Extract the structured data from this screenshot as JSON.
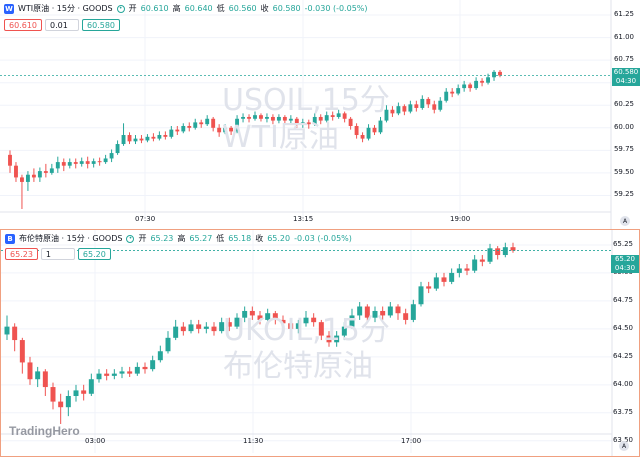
{
  "top": {
    "title": "WTI原油 · 15分 · GOODS",
    "open_label": "开",
    "open": "60.610",
    "high_label": "高",
    "high": "60.640",
    "low_label": "低",
    "low": "60.560",
    "close_label": "收",
    "close": "60.580",
    "change": "-0.030 (-0.05%)",
    "box_bid": "60.610",
    "box_step": "0.01",
    "box_ask": "60.580",
    "watermark1": "USOIL,15分",
    "watermark2": "WTI原油",
    "price_tag": "60.580",
    "countdown": "04:30",
    "y_ticks": [
      "61.25",
      "61.00",
      "60.75",
      "60.50",
      "60.25",
      "60.00",
      "59.75",
      "59.50",
      "59.25"
    ],
    "x_ticks": [
      "07:30",
      "13:15",
      "19:00"
    ],
    "a_label": "A"
  },
  "bottom": {
    "title": "布伦特原油 · 15分 · GOODS",
    "open_label": "开",
    "open": "65.23",
    "high_label": "高",
    "high": "65.27",
    "low_label": "低",
    "low": "65.18",
    "close_label": "收",
    "close": "65.20",
    "change": "-0.03 (-0.05%)",
    "box_bid": "65.23",
    "box_step": "1",
    "box_ask": "65.20",
    "watermark1": "UKOIL,15分",
    "watermark2": "布伦特原油",
    "price_tag": "65.20",
    "countdown": "04:30",
    "y_ticks": [
      "65.25",
      "65.00",
      "64.75",
      "64.50",
      "64.25",
      "64.00",
      "63.75",
      "63.50"
    ],
    "x_ticks": [
      "03:00",
      "11:30",
      "17:00"
    ],
    "a_label": "A",
    "brand": "TradingHero"
  },
  "colors": {
    "up": "#26a69a",
    "down": "#ef5350",
    "grid": "#f0f3fa"
  },
  "chart_data": [
    {
      "type": "candlestick",
      "series_name": "USOIL",
      "ylim": [
        59.1,
        61.35
      ],
      "y_ticks": [
        59.25,
        59.5,
        59.75,
        60.0,
        60.25,
        60.5,
        60.75,
        61.0,
        61.25
      ],
      "last": 60.58,
      "candles": [
        [
          59.7,
          59.58,
          59.75,
          59.5
        ],
        [
          59.58,
          59.45,
          59.62,
          59.4
        ],
        [
          59.45,
          59.4,
          59.48,
          59.1
        ],
        [
          59.4,
          59.48,
          59.52,
          59.3
        ],
        [
          59.48,
          59.45,
          59.55,
          59.4
        ],
        [
          59.45,
          59.52,
          59.56,
          59.4
        ],
        [
          59.52,
          59.5,
          59.6,
          59.45
        ],
        [
          59.5,
          59.55,
          59.6,
          59.48
        ],
        [
          59.55,
          59.62,
          59.68,
          59.5
        ],
        [
          59.62,
          59.58,
          59.66,
          59.52
        ],
        [
          59.58,
          59.62,
          59.66,
          59.55
        ],
        [
          59.62,
          59.6,
          59.66,
          59.55
        ],
        [
          59.6,
          59.63,
          59.67,
          59.57
        ],
        [
          59.63,
          59.6,
          59.68,
          59.55
        ],
        [
          59.6,
          59.63,
          59.66,
          59.56
        ],
        [
          59.63,
          59.62,
          59.67,
          59.58
        ],
        [
          59.62,
          59.66,
          59.7,
          59.6
        ],
        [
          59.66,
          59.72,
          59.76,
          59.62
        ],
        [
          59.72,
          59.82,
          59.86,
          59.7
        ],
        [
          59.82,
          59.92,
          60.05,
          59.8
        ],
        [
          59.92,
          59.85,
          59.95,
          59.82
        ],
        [
          59.85,
          59.88,
          59.92,
          59.82
        ],
        [
          59.88,
          59.86,
          59.92,
          59.83
        ],
        [
          59.86,
          59.9,
          59.93,
          59.84
        ],
        [
          59.9,
          59.88,
          59.94,
          59.85
        ],
        [
          59.88,
          59.92,
          59.96,
          59.86
        ],
        [
          59.92,
          59.9,
          59.96,
          59.87
        ],
        [
          59.9,
          59.98,
          60.02,
          59.88
        ],
        [
          59.98,
          59.96,
          60.02,
          59.92
        ],
        [
          59.96,
          60.02,
          60.05,
          59.94
        ],
        [
          60.02,
          60.0,
          60.06,
          59.96
        ],
        [
          60.0,
          60.06,
          60.1,
          59.98
        ],
        [
          60.06,
          60.04,
          60.09,
          60.0
        ],
        [
          60.04,
          60.1,
          60.14,
          60.02
        ],
        [
          60.1,
          60.0,
          60.12,
          59.96
        ],
        [
          60.0,
          59.95,
          60.04,
          59.9
        ],
        [
          59.95,
          60.0,
          60.04,
          59.93
        ],
        [
          60.0,
          59.96,
          60.02,
          59.92
        ],
        [
          59.96,
          60.1,
          60.14,
          59.94
        ],
        [
          60.1,
          60.12,
          60.16,
          60.06
        ],
        [
          60.12,
          60.1,
          60.15,
          60.06
        ],
        [
          60.1,
          60.14,
          60.18,
          60.08
        ],
        [
          60.14,
          60.1,
          60.16,
          60.07
        ],
        [
          60.1,
          60.12,
          60.16,
          60.06
        ],
        [
          60.12,
          60.08,
          60.15,
          60.04
        ],
        [
          60.08,
          60.12,
          60.15,
          60.05
        ],
        [
          60.12,
          60.08,
          60.14,
          60.05
        ],
        [
          60.08,
          60.1,
          60.14,
          60.05
        ],
        [
          60.1,
          60.04,
          60.12,
          60.0
        ],
        [
          60.04,
          60.06,
          60.1,
          60.0
        ],
        [
          60.06,
          60.04,
          60.09,
          59.99
        ],
        [
          60.04,
          60.12,
          60.16,
          60.02
        ],
        [
          60.12,
          60.08,
          60.15,
          60.04
        ],
        [
          60.08,
          60.14,
          60.18,
          60.06
        ],
        [
          60.14,
          60.12,
          60.18,
          60.08
        ],
        [
          60.12,
          60.16,
          60.2,
          60.1
        ],
        [
          60.16,
          60.1,
          60.18,
          60.06
        ],
        [
          60.1,
          60.02,
          60.12,
          59.98
        ],
        [
          60.02,
          59.92,
          60.05,
          59.88
        ],
        [
          59.92,
          59.88,
          59.95,
          59.84
        ],
        [
          59.88,
          60.0,
          60.04,
          59.86
        ],
        [
          60.0,
          59.95,
          60.03,
          59.92
        ],
        [
          59.95,
          60.08,
          60.12,
          59.93
        ],
        [
          60.08,
          60.2,
          60.25,
          60.06
        ],
        [
          60.2,
          60.16,
          60.24,
          60.12
        ],
        [
          60.16,
          60.24,
          60.28,
          60.14
        ],
        [
          60.24,
          60.18,
          60.26,
          60.14
        ],
        [
          60.18,
          60.26,
          60.3,
          60.16
        ],
        [
          60.26,
          60.22,
          60.3,
          60.18
        ],
        [
          60.22,
          60.32,
          60.36,
          60.2
        ],
        [
          60.32,
          60.26,
          60.34,
          60.22
        ],
        [
          60.26,
          60.2,
          60.3,
          60.16
        ],
        [
          60.2,
          60.3,
          60.34,
          60.18
        ],
        [
          60.3,
          60.4,
          60.44,
          60.28
        ],
        [
          60.4,
          60.38,
          60.44,
          60.34
        ],
        [
          60.38,
          60.44,
          60.48,
          60.36
        ],
        [
          60.44,
          60.48,
          60.52,
          60.4
        ],
        [
          60.48,
          60.44,
          60.5,
          60.4
        ],
        [
          60.44,
          60.52,
          60.56,
          60.42
        ],
        [
          60.52,
          60.5,
          60.55,
          60.46
        ],
        [
          60.5,
          60.56,
          60.6,
          60.48
        ],
        [
          60.56,
          60.62,
          60.64,
          60.52
        ],
        [
          60.62,
          60.58,
          60.64,
          60.56
        ]
      ]
    },
    {
      "type": "candlestick",
      "series_name": "UKOIL",
      "ylim": [
        63.48,
        65.33
      ],
      "y_ticks": [
        63.5,
        63.75,
        64.0,
        64.25,
        64.5,
        64.75,
        65.0,
        65.25
      ],
      "last": 65.2,
      "candles": [
        [
          64.45,
          64.52,
          64.62,
          64.4
        ],
        [
          64.52,
          64.4,
          64.55,
          64.3
        ],
        [
          64.4,
          64.2,
          64.42,
          64.1
        ],
        [
          64.2,
          64.05,
          64.25,
          64.0
        ],
        [
          64.05,
          64.12,
          64.16,
          63.98
        ],
        [
          64.12,
          63.98,
          64.14,
          63.9
        ],
        [
          63.98,
          63.85,
          64.02,
          63.78
        ],
        [
          63.85,
          63.8,
          63.92,
          63.65
        ],
        [
          63.8,
          63.9,
          63.95,
          63.72
        ],
        [
          63.9,
          63.95,
          64.0,
          63.85
        ],
        [
          63.95,
          63.92,
          64.0,
          63.86
        ],
        [
          63.92,
          64.05,
          64.1,
          63.9
        ],
        [
          64.05,
          64.1,
          64.14,
          64.02
        ],
        [
          64.1,
          64.08,
          64.14,
          64.04
        ],
        [
          64.08,
          64.1,
          64.14,
          64.05
        ],
        [
          64.1,
          64.12,
          64.16,
          64.06
        ],
        [
          64.12,
          64.1,
          64.16,
          64.07
        ],
        [
          64.1,
          64.16,
          64.2,
          64.08
        ],
        [
          64.16,
          64.14,
          64.2,
          64.1
        ],
        [
          64.14,
          64.22,
          64.26,
          64.12
        ],
        [
          64.22,
          64.3,
          64.35,
          64.2
        ],
        [
          64.3,
          64.42,
          64.48,
          64.28
        ],
        [
          64.42,
          64.52,
          64.58,
          64.4
        ],
        [
          64.52,
          64.48,
          64.56,
          64.44
        ],
        [
          64.48,
          64.54,
          64.58,
          64.46
        ],
        [
          64.54,
          64.5,
          64.58,
          64.46
        ],
        [
          64.5,
          64.52,
          64.56,
          64.46
        ],
        [
          64.52,
          64.48,
          64.56,
          64.44
        ],
        [
          64.48,
          64.56,
          64.6,
          64.46
        ],
        [
          64.56,
          64.52,
          64.6,
          64.48
        ],
        [
          64.52,
          64.6,
          64.64,
          64.5
        ],
        [
          64.6,
          64.66,
          64.7,
          64.56
        ],
        [
          64.66,
          64.62,
          64.7,
          64.58
        ],
        [
          64.62,
          64.58,
          64.66,
          64.54
        ],
        [
          64.58,
          64.64,
          64.68,
          64.56
        ],
        [
          64.64,
          64.58,
          64.66,
          64.54
        ],
        [
          64.58,
          64.55,
          64.62,
          64.5
        ],
        [
          64.55,
          64.5,
          64.58,
          64.46
        ],
        [
          64.5,
          64.55,
          64.58,
          64.46
        ],
        [
          64.55,
          64.6,
          64.66,
          64.52
        ],
        [
          64.6,
          64.56,
          64.64,
          64.52
        ],
        [
          64.56,
          64.44,
          64.58,
          64.4
        ],
        [
          64.44,
          64.38,
          64.48,
          64.34
        ],
        [
          64.38,
          64.44,
          64.48,
          64.34
        ],
        [
          64.44,
          64.52,
          64.56,
          64.4
        ],
        [
          64.52,
          64.62,
          64.68,
          64.5
        ],
        [
          64.62,
          64.7,
          64.74,
          64.58
        ],
        [
          64.7,
          64.6,
          64.72,
          64.56
        ],
        [
          64.6,
          64.66,
          64.7,
          64.56
        ],
        [
          64.66,
          64.62,
          64.7,
          64.58
        ],
        [
          64.62,
          64.7,
          64.74,
          64.6
        ],
        [
          64.7,
          64.64,
          64.72,
          64.58
        ],
        [
          64.64,
          64.58,
          64.68,
          64.54
        ],
        [
          64.58,
          64.72,
          64.76,
          64.56
        ],
        [
          64.72,
          64.88,
          64.92,
          64.7
        ],
        [
          64.88,
          64.86,
          64.92,
          64.82
        ],
        [
          64.86,
          64.96,
          65.0,
          64.84
        ],
        [
          64.96,
          64.92,
          65.0,
          64.88
        ],
        [
          64.92,
          65.0,
          65.04,
          64.9
        ],
        [
          65.0,
          65.04,
          65.08,
          64.96
        ],
        [
          65.04,
          65.02,
          65.08,
          64.98
        ],
        [
          65.02,
          65.12,
          65.16,
          65.0
        ],
        [
          65.12,
          65.1,
          65.16,
          65.06
        ],
        [
          65.1,
          65.22,
          65.26,
          65.08
        ],
        [
          65.22,
          65.16,
          65.24,
          65.12
        ],
        [
          65.16,
          65.23,
          65.27,
          65.14
        ],
        [
          65.23,
          65.2,
          65.27,
          65.18
        ]
      ]
    }
  ]
}
